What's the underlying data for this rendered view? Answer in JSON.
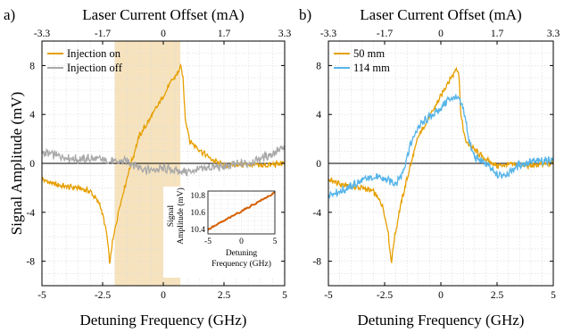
{
  "colors": {
    "orange": "#E69F00",
    "gray": "#A9A9A9",
    "blue": "#56B4E9",
    "inset_line": "#D55E00",
    "shade": "#F5DEB3",
    "grid": "#D9D9D9",
    "zero": "#000000"
  },
  "chart_data": [
    {
      "type": "line",
      "panel_label": "a)",
      "title": "",
      "xlabel": "Detuning Frequency (GHz)",
      "ylabel": "Signal Amplitude (mV)",
      "top_xlabel": "Laser Current Offset (mA)",
      "xlim": [
        -5,
        5
      ],
      "ylim": [
        -10,
        10
      ],
      "xticks": [
        "-5",
        "-2.5",
        "0",
        "2.5",
        "5"
      ],
      "yticks": [
        "-8",
        "-4",
        "0",
        "4",
        "8"
      ],
      "top_xticks": [
        "-3.3",
        "-1.7",
        "0",
        "1.7",
        "3.3"
      ],
      "grid": true,
      "legend_position": "top-left",
      "shaded_region_x": [
        -2.0,
        0.7
      ],
      "series": [
        {
          "name": "Injection on",
          "color": "#E69F00",
          "x": [
            -5,
            -4.5,
            -4.0,
            -3.5,
            -3.0,
            -2.6,
            -2.35,
            -2.2,
            -2.1,
            -1.8,
            -1.4,
            -1.0,
            -0.5,
            0.0,
            0.3,
            0.6,
            0.7,
            0.8,
            0.9,
            1.1,
            1.5,
            2.0,
            2.5,
            3.0,
            3.5,
            4.0,
            4.5,
            5.0
          ],
          "y": [
            -1.3,
            -1.7,
            -1.9,
            -2.0,
            -2.3,
            -3.4,
            -5.5,
            -8.2,
            -6.5,
            -3.5,
            -0.5,
            2.2,
            3.8,
            5.5,
            6.6,
            7.4,
            7.9,
            7.3,
            3.8,
            1.8,
            1.1,
            0.3,
            -0.2,
            -0.1,
            -0.1,
            -0.2,
            -0.1,
            0.0
          ]
        },
        {
          "name": "Injection off",
          "color": "#A9A9A9",
          "x": [
            -5,
            -4.5,
            -4.0,
            -3.5,
            -3.0,
            -2.5,
            -2.0,
            -1.5,
            -1.0,
            -0.5,
            0.0,
            0.5,
            1.0,
            1.5,
            2.0,
            2.5,
            3.0,
            3.5,
            4.0,
            4.5,
            5.0
          ],
          "y": [
            0.9,
            0.7,
            0.5,
            0.3,
            0.4,
            0.3,
            0.1,
            0.2,
            -0.3,
            -0.6,
            -0.4,
            -0.6,
            -0.7,
            -0.5,
            -0.3,
            -0.3,
            -0.1,
            0.0,
            0.4,
            0.8,
            1.3
          ]
        }
      ],
      "inset": {
        "xlabel": "Detuning Frequency (GHz)",
        "ylabel": "Signal Amplitude (mV)",
        "xlim": [
          -5,
          5
        ],
        "ylim": [
          10.35,
          10.85
        ],
        "xticks": [
          "-5",
          "0",
          "5"
        ],
        "yticks": [
          "10.4",
          "10.6",
          "10.8"
        ],
        "series": [
          {
            "color": "#D55E00",
            "x": [
              -5,
              5
            ],
            "y": [
              10.4,
              10.83
            ]
          }
        ]
      }
    },
    {
      "type": "line",
      "panel_label": "b)",
      "title": "",
      "xlabel": "Detuning Frequency (GHz)",
      "ylabel": "",
      "top_xlabel": "Laser Current Offset (mA)",
      "xlim": [
        -5,
        5
      ],
      "ylim": [
        -10,
        10
      ],
      "xticks": [
        "-5",
        "-2.5",
        "0",
        "2.5",
        "5"
      ],
      "yticks": [
        "-8",
        "-4",
        "0",
        "4",
        "8"
      ],
      "top_xticks": [
        "-3.3",
        "-1.7",
        "0",
        "1.7",
        "3.3"
      ],
      "grid": true,
      "legend_position": "top-left",
      "series": [
        {
          "name": "50 mm",
          "color": "#E69F00",
          "x": [
            -5,
            -4.5,
            -4.0,
            -3.5,
            -3.0,
            -2.6,
            -2.35,
            -2.2,
            -2.1,
            -1.8,
            -1.4,
            -1.0,
            -0.5,
            0.0,
            0.3,
            0.6,
            0.7,
            0.8,
            0.9,
            1.1,
            1.5,
            2.0,
            2.5,
            3.0,
            3.5,
            4.0,
            4.5,
            5.0
          ],
          "y": [
            -1.3,
            -1.7,
            -1.9,
            -2.0,
            -2.3,
            -3.4,
            -5.5,
            -8.2,
            -6.5,
            -3.5,
            -0.5,
            2.2,
            3.8,
            5.5,
            6.6,
            7.4,
            7.9,
            7.3,
            3.8,
            1.8,
            1.1,
            0.3,
            -0.2,
            -0.1,
            -0.1,
            -0.2,
            -0.1,
            0.0
          ]
        },
        {
          "name": "114 mm",
          "color": "#56B4E9",
          "x": [
            -5,
            -4.5,
            -4.0,
            -3.5,
            -3.0,
            -2.5,
            -2.0,
            -1.7,
            -1.4,
            -1.0,
            -0.5,
            -0.2,
            0.0,
            0.3,
            0.6,
            0.8,
            1.0,
            1.3,
            1.5,
            2.0,
            2.5,
            3.0,
            3.5,
            4.0,
            4.5,
            5.0
          ],
          "y": [
            -2.5,
            -2.3,
            -1.9,
            -1.4,
            -1.1,
            -1.3,
            -1.6,
            -0.8,
            1.3,
            3.0,
            3.8,
            4.2,
            4.5,
            5.2,
            5.4,
            5.2,
            4.5,
            1.5,
            0.5,
            0.0,
            -1.0,
            -0.8,
            -0.1,
            0.1,
            0.2,
            0.3
          ]
        }
      ]
    }
  ]
}
